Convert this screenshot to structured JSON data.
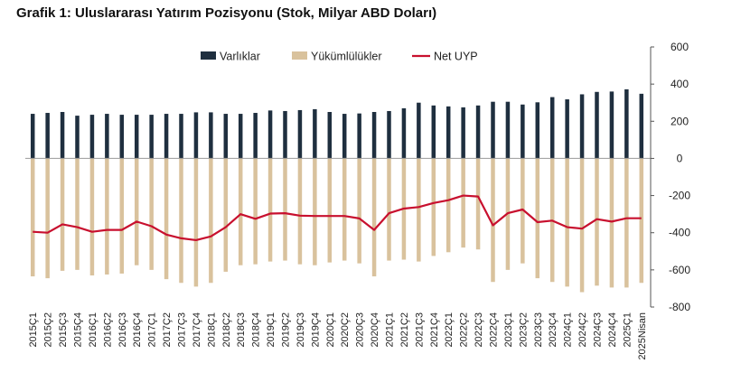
{
  "title": "Grafik 1: Uluslararası Yatırım Pozisyonu (Stok, Milyar ABD Doları)",
  "colors": {
    "assets": "#1f2f3f",
    "liabilities": "#d9c29d",
    "net": "#c8102e"
  },
  "chart_data": {
    "type": "bar",
    "title": "Grafik 1: Uluslararası Yatırım Pozisyonu (Stok, Milyar ABD Doları)",
    "ylim": [
      -800,
      600
    ],
    "yticks": [
      -800,
      -600,
      -400,
      -200,
      0,
      200,
      400,
      600
    ],
    "ytick_labels": [
      "-800",
      "-600",
      "-400",
      "-200",
      "0",
      "200",
      "400",
      "600"
    ],
    "y_axis_side": "right",
    "grid": false,
    "legend_position": "top-center",
    "categories": [
      "2015Ç1",
      "2015Ç2",
      "2015Ç3",
      "2015Ç4",
      "2016Ç1",
      "2016Ç2",
      "2016Ç3",
      "2016Ç4",
      "2017Ç1",
      "2017Ç2",
      "2017Ç3",
      "2017Ç4",
      "2018Ç1",
      "2018Ç2",
      "2018Ç3",
      "2018Ç4",
      "2019Ç1",
      "2019Ç2",
      "2019Ç3",
      "2019Ç4",
      "2020Ç1",
      "2020Ç2",
      "2020Ç3",
      "2020Ç4",
      "2021Ç1",
      "2021Ç2",
      "2021Ç3",
      "2021Ç4",
      "2022Ç1",
      "2022Ç2",
      "2022Ç3",
      "2022Ç4",
      "2023Ç1",
      "2023Ç2",
      "2023Ç3",
      "2023Ç4",
      "2024Ç1",
      "2024Ç2",
      "2024Ç3",
      "2024Ç4",
      "2025Ç1",
      "2025Nisan"
    ],
    "series": [
      {
        "name": "Varlıklar",
        "type": "bar",
        "values": [
          240,
          245,
          250,
          230,
          235,
          240,
          235,
          235,
          235,
          240,
          240,
          248,
          248,
          240,
          240,
          245,
          258,
          255,
          260,
          265,
          250,
          240,
          242,
          250,
          255,
          270,
          300,
          285,
          280,
          275,
          285,
          305,
          305,
          290,
          302,
          330,
          318,
          345,
          358,
          360,
          372,
          348
        ]
      },
      {
        "name": "Yükümlülükler",
        "type": "bar",
        "values": [
          -635,
          -645,
          -605,
          -600,
          -630,
          -625,
          -620,
          -575,
          -600,
          -650,
          -670,
          -690,
          -670,
          -610,
          -575,
          -570,
          -555,
          -550,
          -570,
          -575,
          -560,
          -550,
          -565,
          -635,
          -550,
          -545,
          -555,
          -525,
          -505,
          -480,
          -490,
          -665,
          -600,
          -565,
          -645,
          -665,
          -690,
          -720,
          -685,
          -695,
          -695,
          -670
        ]
      },
      {
        "name": "Net UYP",
        "type": "line",
        "values": [
          -395,
          -400,
          -355,
          -370,
          -395,
          -385,
          -385,
          -340,
          -365,
          -410,
          -430,
          -440,
          -420,
          -370,
          -300,
          -325,
          -297,
          -295,
          -308,
          -310,
          -310,
          -310,
          -323,
          -385,
          -295,
          -270,
          -262,
          -240,
          -225,
          -200,
          -205,
          -360,
          -295,
          -275,
          -343,
          -335,
          -370,
          -378,
          -327,
          -340,
          -322,
          -322
        ]
      }
    ]
  }
}
